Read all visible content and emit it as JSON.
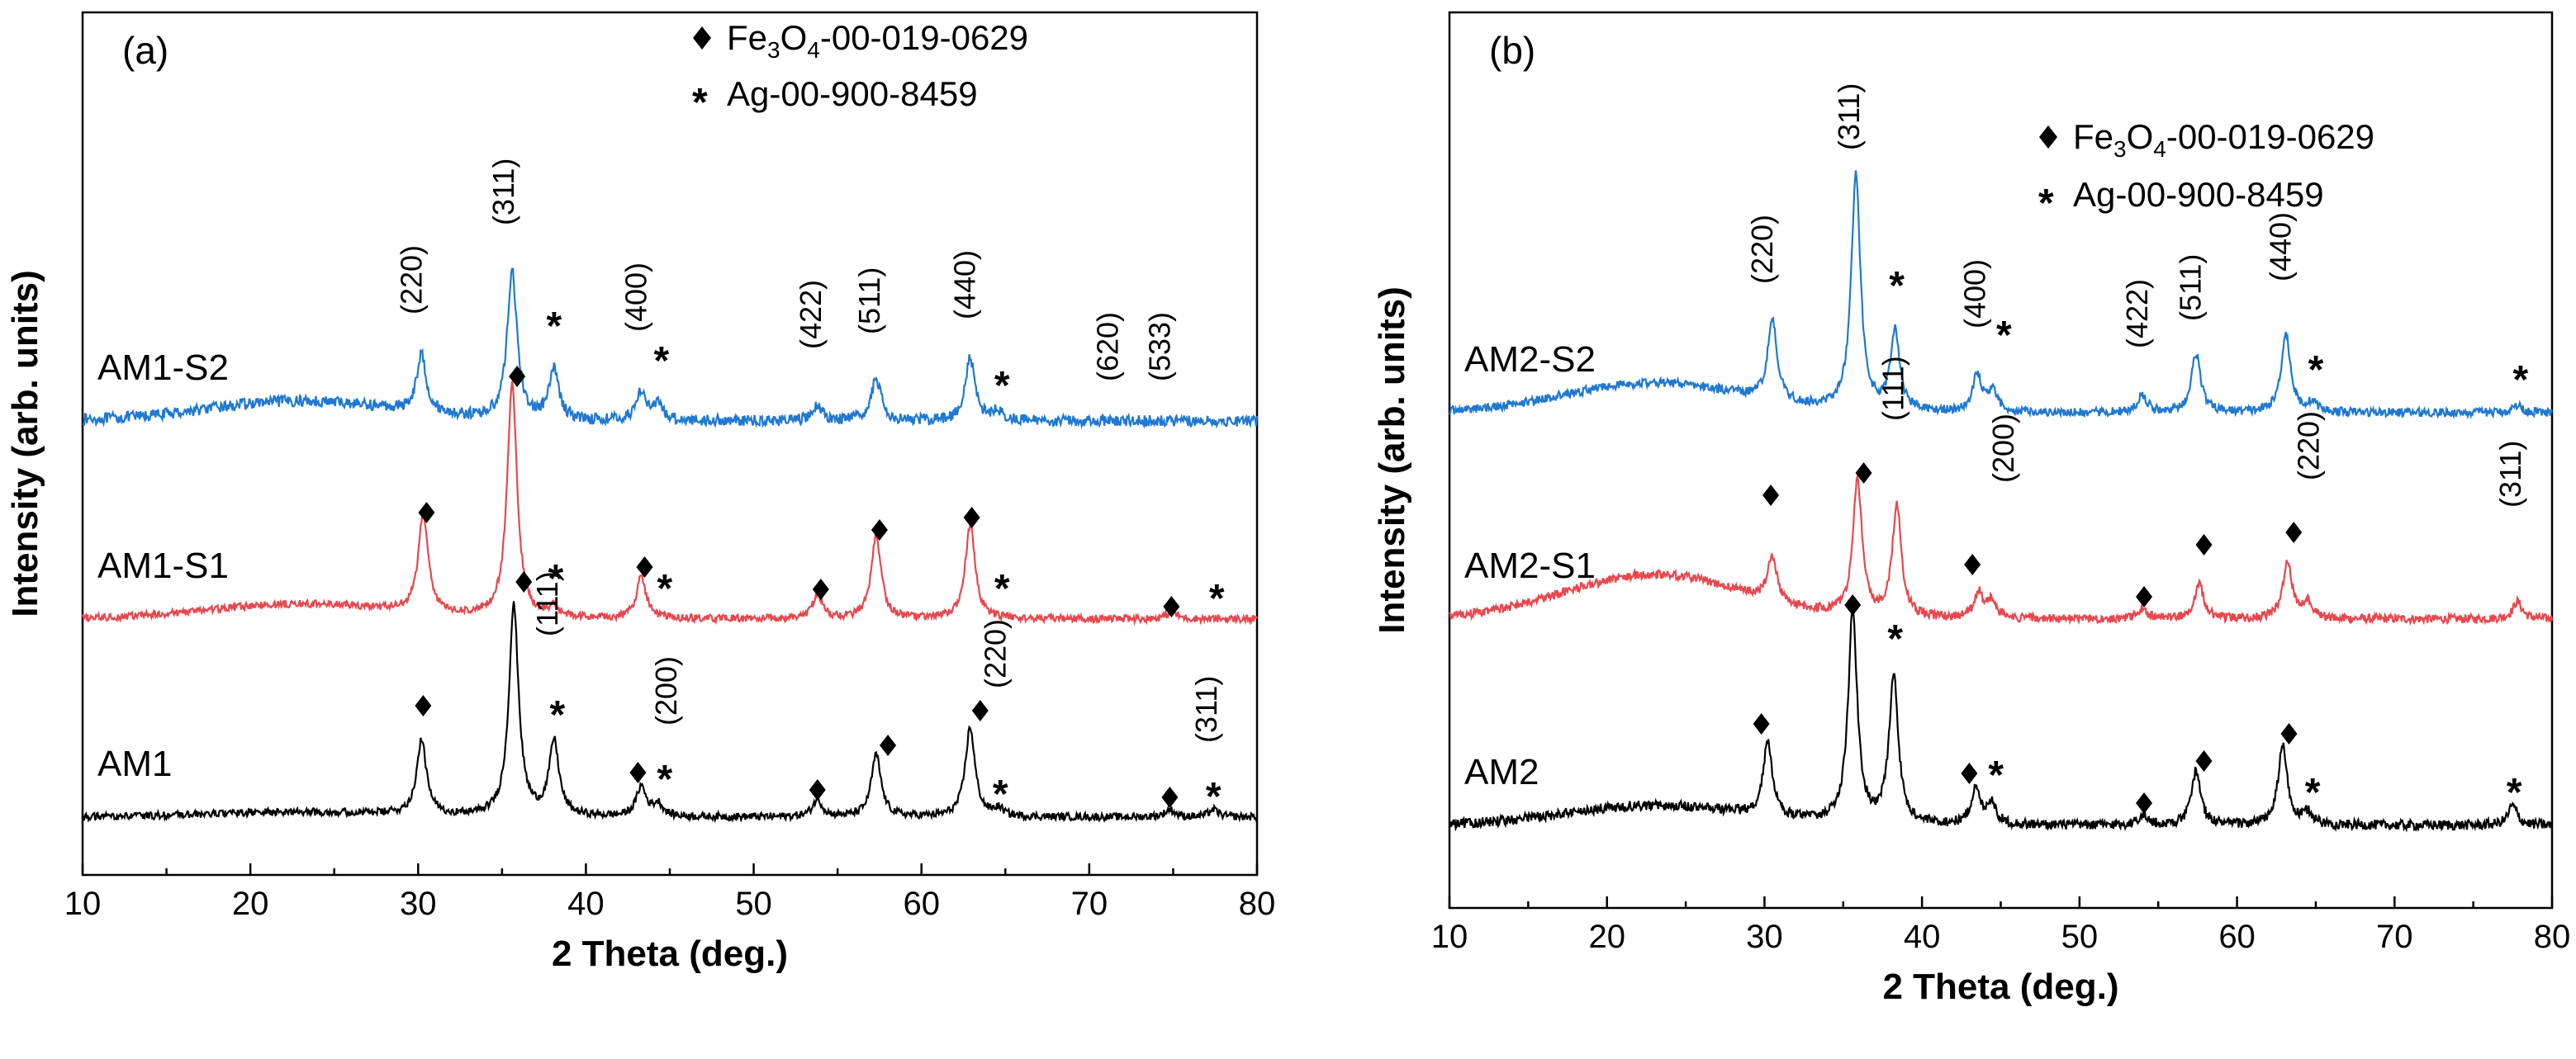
{
  "chart_data": [
    {
      "type": "line",
      "panel_label": "(a)",
      "xlabel": "2 Theta (deg.)",
      "ylabel": "Intensity (arb. units)",
      "xlim": [
        10,
        80
      ],
      "xticks": [
        10,
        20,
        30,
        40,
        50,
        60,
        70,
        80
      ],
      "legend": {
        "placement": "top-right",
        "entries": [
          {
            "marker": "diamond",
            "label": "Fe3O4-00-019-0629",
            "main": "Fe",
            "sub1": "3",
            "mid": "O",
            "sub2": "4",
            "rest": "-00-019-0629"
          },
          {
            "marker": "star",
            "label": "Ag-00-900-8459"
          }
        ]
      },
      "series": [
        {
          "name": "AM1-S2",
          "color": "#1f78d1",
          "baseline": 0.0,
          "offset": 2.0,
          "noise": 0.045,
          "hump": 0.08,
          "peaks": [
            [
              30.2,
              0.23
            ],
            [
              35.6,
              0.6
            ],
            [
              38.1,
              0.2
            ],
            [
              43.3,
              0.12
            ],
            [
              44.3,
              0.06
            ],
            [
              53.8,
              0.06
            ],
            [
              57.3,
              0.17
            ],
            [
              62.9,
              0.25
            ],
            [
              64.5,
              0.04
            ]
          ],
          "diamonds": [],
          "stars": [
            [
              38.1,
              0.39
            ],
            [
              44.5,
              0.25
            ],
            [
              64.8,
              0.15
            ]
          ],
          "hkl": [
            {
              "x": 30.2,
              "y": 0.43,
              "text": "(220)"
            },
            {
              "x": 35.7,
              "y": 0.79,
              "text": "(311)"
            },
            {
              "x": 43.6,
              "y": 0.36,
              "text": "(400)"
            },
            {
              "x": 54.0,
              "y": 0.29,
              "text": "(422)"
            },
            {
              "x": 57.5,
              "y": 0.35,
              "text": "(511)"
            },
            {
              "x": 63.2,
              "y": 0.41,
              "text": "(440)"
            },
            {
              "x": 71.7,
              "y": 0.16,
              "text": "(620)"
            },
            {
              "x": 74.8,
              "y": 0.16,
              "text": "(533)"
            }
          ]
        },
        {
          "name": "AM1-S1",
          "color": "#e8474e",
          "baseline": 0.0,
          "offset": 1.0,
          "noise": 0.03,
          "hump": 0.06,
          "peaks": [
            [
              30.3,
              0.4
            ],
            [
              35.6,
              0.95
            ],
            [
              38.1,
              0.04
            ],
            [
              43.3,
              0.17
            ],
            [
              53.8,
              0.1
            ],
            [
              57.3,
              0.33
            ],
            [
              62.9,
              0.38
            ],
            [
              74.9,
              0.03
            ]
          ],
          "diamonds": [
            [
              30.5,
              0.43
            ],
            [
              35.9,
              0.98
            ],
            [
              43.5,
              0.21
            ],
            [
              54.0,
              0.12
            ],
            [
              57.5,
              0.36
            ],
            [
              63.0,
              0.41
            ],
            [
              74.9,
              0.05
            ]
          ],
          "stars": [
            [
              38.2,
              0.17
            ],
            [
              44.7,
              0.13
            ],
            [
              64.8,
              0.13
            ],
            [
              77.6,
              0.09
            ]
          ],
          "hkl": []
        },
        {
          "name": "AM1",
          "color": "#000000",
          "baseline": 0.0,
          "offset": 0.0,
          "noise": 0.03,
          "hump": 0.02,
          "peaks": [
            [
              30.2,
              0.3
            ],
            [
              35.7,
              0.85
            ],
            [
              38.1,
              0.3
            ],
            [
              43.3,
              0.12
            ],
            [
              44.3,
              0.05
            ],
            [
              53.8,
              0.07
            ],
            [
              57.3,
              0.25
            ],
            [
              62.9,
              0.36
            ],
            [
              64.6,
              0.03
            ],
            [
              74.8,
              0.03
            ],
            [
              77.4,
              0.03
            ]
          ],
          "diamonds": [
            [
              30.3,
              0.45
            ],
            [
              36.3,
              0.95
            ],
            [
              43.1,
              0.18
            ],
            [
              53.8,
              0.11
            ],
            [
              58.0,
              0.29
            ],
            [
              63.5,
              0.43
            ],
            [
              74.8,
              0.08
            ]
          ],
          "stars": [
            [
              38.3,
              0.42
            ],
            [
              44.7,
              0.16
            ],
            [
              64.7,
              0.1
            ],
            [
              77.4,
              0.09
            ]
          ],
          "hkl": [
            {
              "x": 38.3,
              "y": 0.73,
              "text": "(111)"
            },
            {
              "x": 45.4,
              "y": 0.37,
              "text": "(200)"
            },
            {
              "x": 65.0,
              "y": 0.52,
              "text": "(220)"
            },
            {
              "x": 77.6,
              "y": 0.3,
              "text": "(311)"
            }
          ]
        }
      ]
    },
    {
      "type": "line",
      "panel_label": "(b)",
      "xlabel": "2 Theta (deg.)",
      "ylabel": "Intensity (arb. units)",
      "xlim": [
        10,
        80
      ],
      "xticks": [
        10,
        20,
        30,
        40,
        50,
        60,
        70,
        80
      ],
      "legend": {
        "placement": "top-right",
        "entries": [
          {
            "marker": "diamond",
            "label": "Fe3O4-00-019-0629",
            "main": "Fe",
            "sub1": "3",
            "mid": "O",
            "sub2": "4",
            "rest": "-00-019-0629"
          },
          {
            "marker": "star",
            "label": "Ag-00-900-8459"
          }
        ]
      },
      "series": [
        {
          "name": "AM2-S2",
          "color": "#1f78d1",
          "baseline": 0.0,
          "offset": 2.0,
          "noise": 0.035,
          "hump": 0.12,
          "peaks": [
            [
              30.5,
              0.33
            ],
            [
              35.8,
              0.95
            ],
            [
              38.3,
              0.32
            ],
            [
              43.5,
              0.15
            ],
            [
              44.5,
              0.08
            ],
            [
              54.0,
              0.07
            ],
            [
              57.4,
              0.24
            ],
            [
              63.1,
              0.32
            ],
            [
              64.8,
              0.04
            ],
            [
              77.8,
              0.03
            ]
          ],
          "diamonds": [],
          "stars": [
            [
              38.4,
              0.52
            ],
            [
              45.2,
              0.32
            ],
            [
              65.0,
              0.18
            ],
            [
              78.0,
              0.14
            ]
          ],
          "hkl": [
            {
              "x": 30.5,
              "y": 0.52,
              "text": "(220)"
            },
            {
              "x": 36.0,
              "y": 1.06,
              "text": "(311)"
            },
            {
              "x": 44.0,
              "y": 0.34,
              "text": "(400)"
            },
            {
              "x": 54.3,
              "y": 0.26,
              "text": "(422)"
            },
            {
              "x": 57.7,
              "y": 0.37,
              "text": "(511)"
            },
            {
              "x": 63.4,
              "y": 0.53,
              "text": "(440)"
            }
          ]
        },
        {
          "name": "AM2-S1",
          "color": "#e8474e",
          "baseline": 0.0,
          "offset": 1.0,
          "noise": 0.035,
          "hump": 0.18,
          "peaks": [
            [
              30.5,
              0.18
            ],
            [
              35.9,
              0.55
            ],
            [
              38.4,
              0.45
            ],
            [
              43.6,
              0.1
            ],
            [
              44.4,
              0.07
            ],
            [
              54.0,
              0.04
            ],
            [
              57.6,
              0.14
            ],
            [
              63.2,
              0.23
            ],
            [
              64.5,
              0.07
            ],
            [
              77.8,
              0.07
            ]
          ],
          "diamonds": [
            [
              30.4,
              0.5
            ],
            [
              36.3,
              0.59
            ],
            [
              43.2,
              0.22
            ],
            [
              54.1,
              0.09
            ],
            [
              57.9,
              0.3
            ],
            [
              63.6,
              0.35
            ]
          ],
          "stars": [],
          "hkl": [
            {
              "x": 38.8,
              "y": 0.8,
              "text": "(111)"
            },
            {
              "x": 45.8,
              "y": 0.55,
              "text": "(200)"
            },
            {
              "x": 65.2,
              "y": 0.56,
              "text": "(220)"
            },
            {
              "x": 78.0,
              "y": 0.45,
              "text": "(311)"
            }
          ]
        },
        {
          "name": "AM2",
          "color": "#000000",
          "baseline": 0.0,
          "offset": 0.0,
          "noise": 0.04,
          "hump": 0.08,
          "peaks": [
            [
              30.2,
              0.3
            ],
            [
              35.6,
              0.85
            ],
            [
              38.2,
              0.6
            ],
            [
              43.4,
              0.14
            ],
            [
              44.4,
              0.09
            ],
            [
              54.0,
              0.04
            ],
            [
              57.4,
              0.22
            ],
            [
              62.9,
              0.32
            ],
            [
              64.5,
              0.05
            ],
            [
              77.5,
              0.08
            ]
          ],
          "diamonds": [
            [
              29.8,
              0.41
            ],
            [
              35.6,
              0.89
            ],
            [
              43.0,
              0.21
            ],
            [
              54.1,
              0.09
            ],
            [
              57.9,
              0.26
            ],
            [
              63.3,
              0.37
            ]
          ],
          "stars": [
            [
              38.3,
              0.76
            ],
            [
              44.7,
              0.21
            ],
            [
              64.8,
              0.14
            ],
            [
              77.6,
              0.14
            ]
          ],
          "hkl": []
        }
      ]
    }
  ]
}
